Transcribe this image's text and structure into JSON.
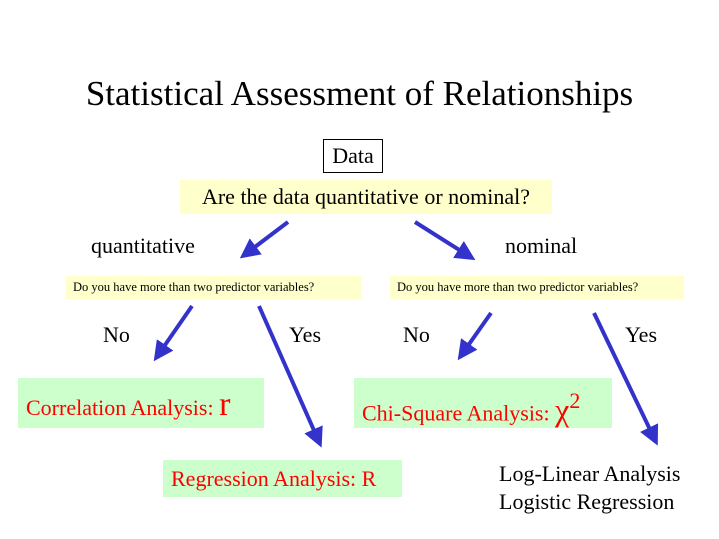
{
  "title": "Statistical Assessment of Relationships",
  "root": "Data",
  "main_question": "Are the data quantitative or nominal?",
  "branches": {
    "quantitative": {
      "label": "quantitative",
      "question": "Do you have more than two predictor variables?",
      "no_label": "No",
      "yes_label": "Yes",
      "no_result": {
        "text": "Correlation Analysis: ",
        "symbol": "r"
      },
      "yes_result": {
        "text": "Regression Analysis: R"
      }
    },
    "nominal": {
      "label": "nominal",
      "question": "Do you have more than two predictor variables?",
      "no_label": "No",
      "yes_label": "Yes",
      "no_result": {
        "text": "Chi-Square Analysis: ",
        "symbol": "χ",
        "superscript": "2"
      },
      "yes_result": {
        "line1": "Log-Linear Analysis",
        "line2": "Logistic Regression"
      }
    }
  },
  "colors": {
    "arrow": "#3333cc",
    "question_bg": "#ffffcc",
    "result_bg": "#ccffcc",
    "result_text": "#ff0000"
  }
}
